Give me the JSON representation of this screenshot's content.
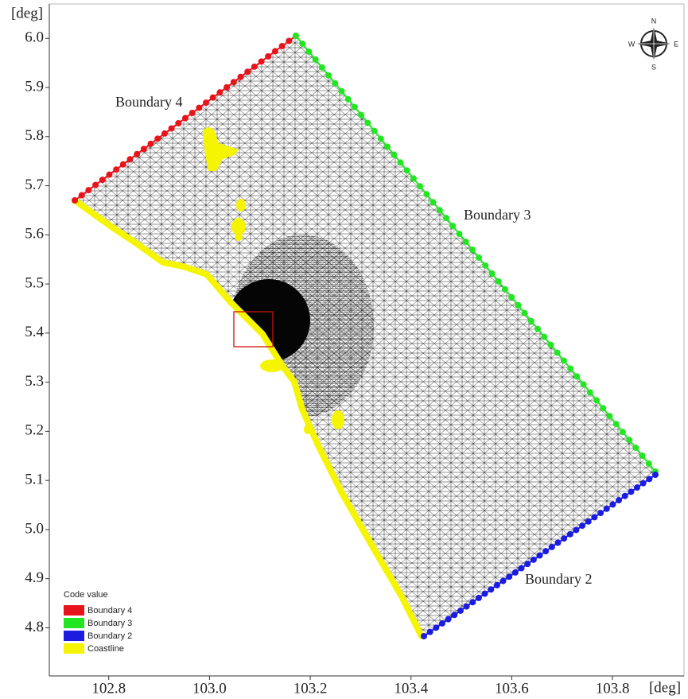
{
  "map": {
    "xlim": [
      102.682,
      103.942
    ],
    "ylim": [
      4.702,
      6.07
    ],
    "xticks": [
      102.8,
      {
        "value": 103,
        "label": "103.0"
      },
      103.2,
      103.4,
      103.6,
      103.8
    ],
    "yticks": [
      {
        "value": 6,
        "label": "6.0"
      },
      5.9,
      5.8,
      5.7,
      5.6,
      5.5,
      5.4,
      5.3,
      5.2,
      5.1,
      {
        "value": 5,
        "label": "5.0"
      },
      4.9,
      4.8
    ],
    "x_unit": "[deg]",
    "y_unit": "[deg]",
    "annotations": [
      "Boundary 4",
      "Boundary 3",
      "Boundary 2"
    ],
    "legend": {
      "title": "Code value",
      "items": [
        {
          "name": "Boundary 4",
          "color": "#e8141c"
        },
        {
          "name": "Boundary 3",
          "color": "#22e622"
        },
        {
          "name": "Boundary 2",
          "color": "#1c1ce0"
        },
        {
          "name": "Coastline",
          "color": "#f5f500"
        }
      ]
    },
    "compass": {
      "n": "N",
      "e": "E",
      "s": "S",
      "w": "W"
    }
  }
}
